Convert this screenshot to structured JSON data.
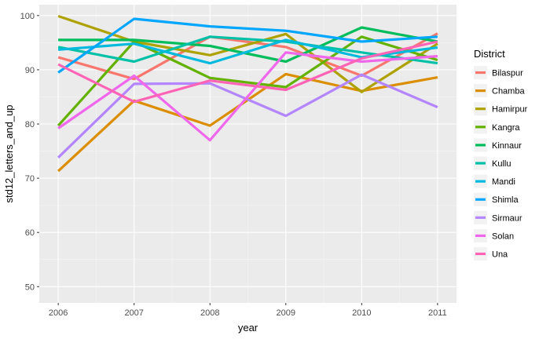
{
  "chart_data": {
    "type": "line",
    "xlabel": "year",
    "ylabel": "std12_letters_and_up",
    "legend_title": "District",
    "legend_position": "right",
    "grid": true,
    "x": [
      2006,
      2007,
      2008,
      2009,
      2010,
      2011
    ],
    "x_ticks": [
      "2006",
      "2007",
      "2008",
      "2009",
      "2010",
      "2011"
    ],
    "xlim": [
      2005.75,
      2011.25
    ],
    "ylim": [
      47,
      102
    ],
    "y_ticks": [
      50,
      60,
      70,
      80,
      90,
      100
    ],
    "series": [
      {
        "name": "Bilaspur",
        "color": "#F8766D",
        "values": [
          92.3,
          88.3,
          96.1,
          94.2,
          88.9,
          96.7
        ]
      },
      {
        "name": "Chamba",
        "color": "#DB8E00",
        "values": [
          71.3,
          84.3,
          79.7,
          89.2,
          86.1,
          88.6
        ]
      },
      {
        "name": "Hamirpur",
        "color": "#AEA200",
        "values": [
          99.9,
          95.2,
          92.7,
          96.6,
          85.9,
          94.8
        ]
      },
      {
        "name": "Kangra",
        "color": "#64B200",
        "values": [
          79.7,
          95.2,
          88.5,
          86.8,
          96.1,
          91.8
        ]
      },
      {
        "name": "Kinnaur",
        "color": "#00BD5C",
        "values": [
          95.5,
          95.5,
          94.4,
          91.5,
          97.8,
          95.2
        ]
      },
      {
        "name": "Kullu",
        "color": "#00C1A7",
        "values": [
          94.2,
          91.5,
          96.1,
          95.2,
          93.2,
          91.2
        ]
      },
      {
        "name": "Mandi",
        "color": "#00BADE",
        "values": [
          93.7,
          94.8,
          91.2,
          95.5,
          92.3,
          94.1
        ]
      },
      {
        "name": "Shimla",
        "color": "#00A6FF",
        "values": [
          89.5,
          99.4,
          98.0,
          97.2,
          95.2,
          96.1
        ]
      },
      {
        "name": "Sirmaur",
        "color": "#B385FF",
        "values": [
          73.8,
          87.4,
          87.5,
          81.5,
          89.1,
          83.1
        ]
      },
      {
        "name": "Solan",
        "color": "#EF67EB",
        "values": [
          79.2,
          88.9,
          77.0,
          93.2,
          91.5,
          92.5
        ]
      },
      {
        "name": "Una",
        "color": "#FF63B6",
        "values": [
          91.0,
          84.1,
          88.0,
          86.3,
          92.1,
          95.2
        ]
      }
    ]
  }
}
